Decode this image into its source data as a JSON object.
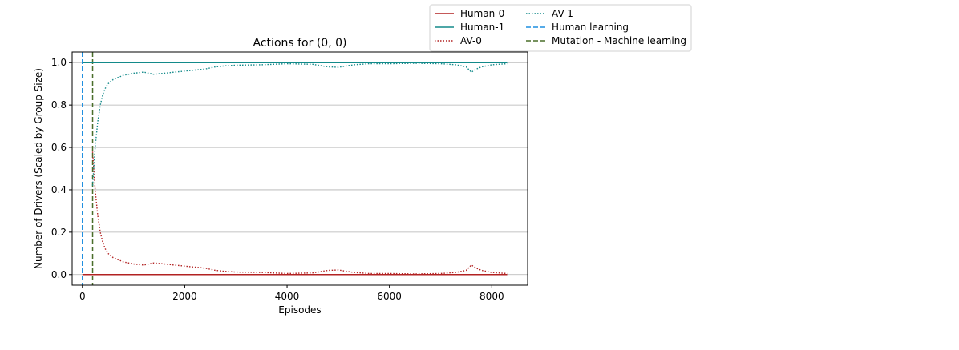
{
  "chart_data": {
    "type": "line",
    "title": "Actions for (0, 0)",
    "xlabel": "Episodes",
    "ylabel": "Number of Drivers (Scaled by Group Size)",
    "xlim": [
      -200,
      8700
    ],
    "ylim": [
      -0.05,
      1.05
    ],
    "xticks": [
      0,
      2000,
      4000,
      6000,
      8000
    ],
    "xtick_labels": [
      "0",
      "2000",
      "4000",
      "6000",
      "8000"
    ],
    "yticks": [
      0.0,
      0.2,
      0.4,
      0.6,
      0.8,
      1.0
    ],
    "ytick_labels": [
      "0.0",
      "0.2",
      "0.4",
      "0.6",
      "0.8",
      "1.0"
    ],
    "grid": "y-axis",
    "legend_position": "above-right",
    "series": [
      {
        "name": "Human-0",
        "color": "#b22222",
        "style": "solid",
        "x": [
          0,
          8300
        ],
        "y": [
          0.0,
          0.0
        ]
      },
      {
        "name": "Human-1",
        "color": "#138a8a",
        "style": "solid",
        "x": [
          0,
          8300
        ],
        "y": [
          1.0,
          1.0
        ]
      },
      {
        "name": "AV-0",
        "color": "#b22222",
        "style": "dotted",
        "x": [
          200,
          250,
          300,
          350,
          400,
          450,
          500,
          600,
          700,
          800,
          900,
          1000,
          1200,
          1400,
          1600,
          1800,
          2000,
          2200,
          2400,
          2600,
          2800,
          3000,
          3500,
          4000,
          4500,
          4800,
          5000,
          5300,
          5600,
          6000,
          6500,
          7000,
          7300,
          7500,
          7600,
          7700,
          7800,
          8000,
          8300
        ],
        "y": [
          0.58,
          0.4,
          0.28,
          0.2,
          0.15,
          0.12,
          0.1,
          0.08,
          0.07,
          0.06,
          0.055,
          0.05,
          0.045,
          0.055,
          0.05,
          0.045,
          0.04,
          0.035,
          0.03,
          0.02,
          0.015,
          0.012,
          0.01,
          0.005,
          0.008,
          0.02,
          0.022,
          0.01,
          0.005,
          0.005,
          0.003,
          0.005,
          0.01,
          0.02,
          0.045,
          0.03,
          0.02,
          0.01,
          0.005
        ]
      },
      {
        "name": "AV-1",
        "color": "#138a8a",
        "style": "dotted",
        "x": [
          200,
          250,
          300,
          350,
          400,
          450,
          500,
          600,
          700,
          800,
          900,
          1000,
          1200,
          1400,
          1600,
          1800,
          2000,
          2200,
          2400,
          2600,
          2800,
          3000,
          3500,
          4000,
          4500,
          4800,
          5000,
          5300,
          5600,
          6000,
          6500,
          7000,
          7300,
          7500,
          7600,
          7700,
          7800,
          8000,
          8300
        ],
        "y": [
          0.42,
          0.6,
          0.72,
          0.8,
          0.85,
          0.88,
          0.9,
          0.92,
          0.93,
          0.94,
          0.945,
          0.95,
          0.955,
          0.945,
          0.95,
          0.955,
          0.96,
          0.965,
          0.97,
          0.98,
          0.985,
          0.988,
          0.99,
          0.995,
          0.992,
          0.98,
          0.978,
          0.99,
          0.995,
          0.995,
          0.997,
          0.995,
          0.99,
          0.98,
          0.955,
          0.97,
          0.98,
          0.99,
          0.995
        ]
      },
      {
        "name": "Human learning",
        "color": "#1f8fe0",
        "style": "dashed",
        "vertical_x": 0
      },
      {
        "name": "Mutation - Machine learning",
        "color": "#4a6e2a",
        "style": "dashed",
        "vertical_x": 200
      }
    ]
  }
}
